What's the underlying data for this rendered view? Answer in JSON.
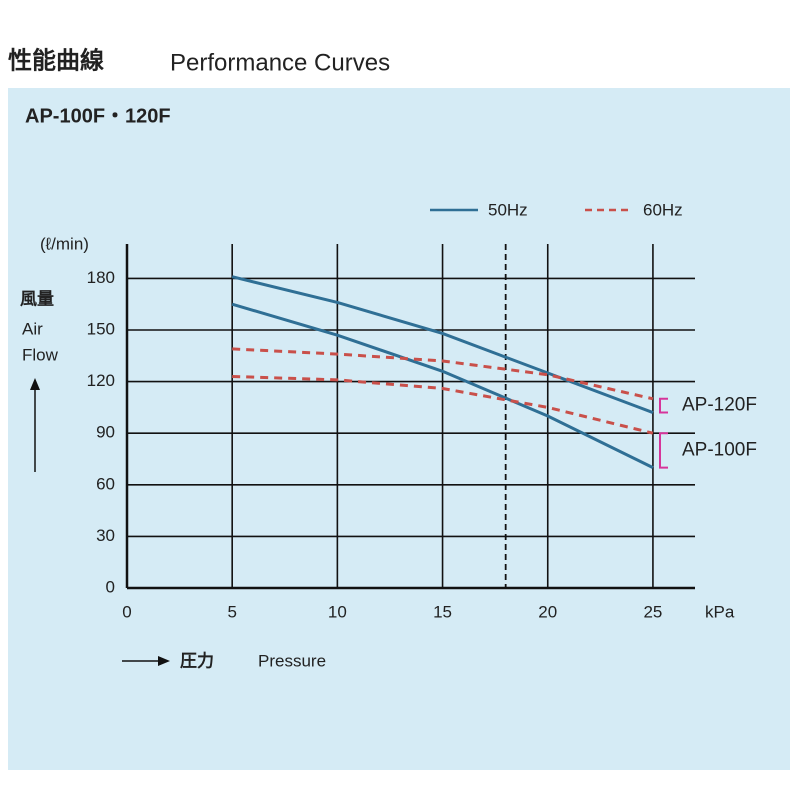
{
  "chart_data": {
    "type": "line",
    "title": "性能曲線",
    "title_en": "Performance Curves",
    "subtitle": "AP-100F・120F",
    "y_unit": "(ℓ/min)",
    "y_label": "風量",
    "y_label_en_1": "Air",
    "y_label_en_2": "Flow",
    "x_unit": "kPa",
    "x_label": "圧力",
    "x_label_en": "Pressure",
    "x": [
      5,
      10,
      15,
      20,
      25
    ],
    "xlim": [
      0,
      27
    ],
    "xticks": [
      0,
      5,
      10,
      15,
      20,
      25
    ],
    "ylim": [
      0,
      200
    ],
    "yticks": [
      0,
      30,
      60,
      90,
      120,
      150,
      180
    ],
    "grid": true,
    "marker_x": 18,
    "legend": [
      "50Hz",
      "60Hz"
    ],
    "colors": [
      "#2f6f95",
      "#c9504a"
    ],
    "dashed": [
      false,
      true
    ],
    "models": [
      "AP-120F",
      "AP-100F"
    ],
    "bracket_color": "#d6349a",
    "series": [
      {
        "model": 0,
        "freq": 0,
        "values": [
          181,
          166,
          148,
          125,
          102
        ]
      },
      {
        "model": 1,
        "freq": 0,
        "values": [
          165,
          147,
          126,
          100,
          70
        ]
      },
      {
        "model": 0,
        "freq": 1,
        "values": [
          139,
          136,
          132,
          124,
          110
        ]
      },
      {
        "model": 1,
        "freq": 1,
        "values": [
          123,
          121,
          116,
          105,
          90
        ]
      }
    ]
  }
}
